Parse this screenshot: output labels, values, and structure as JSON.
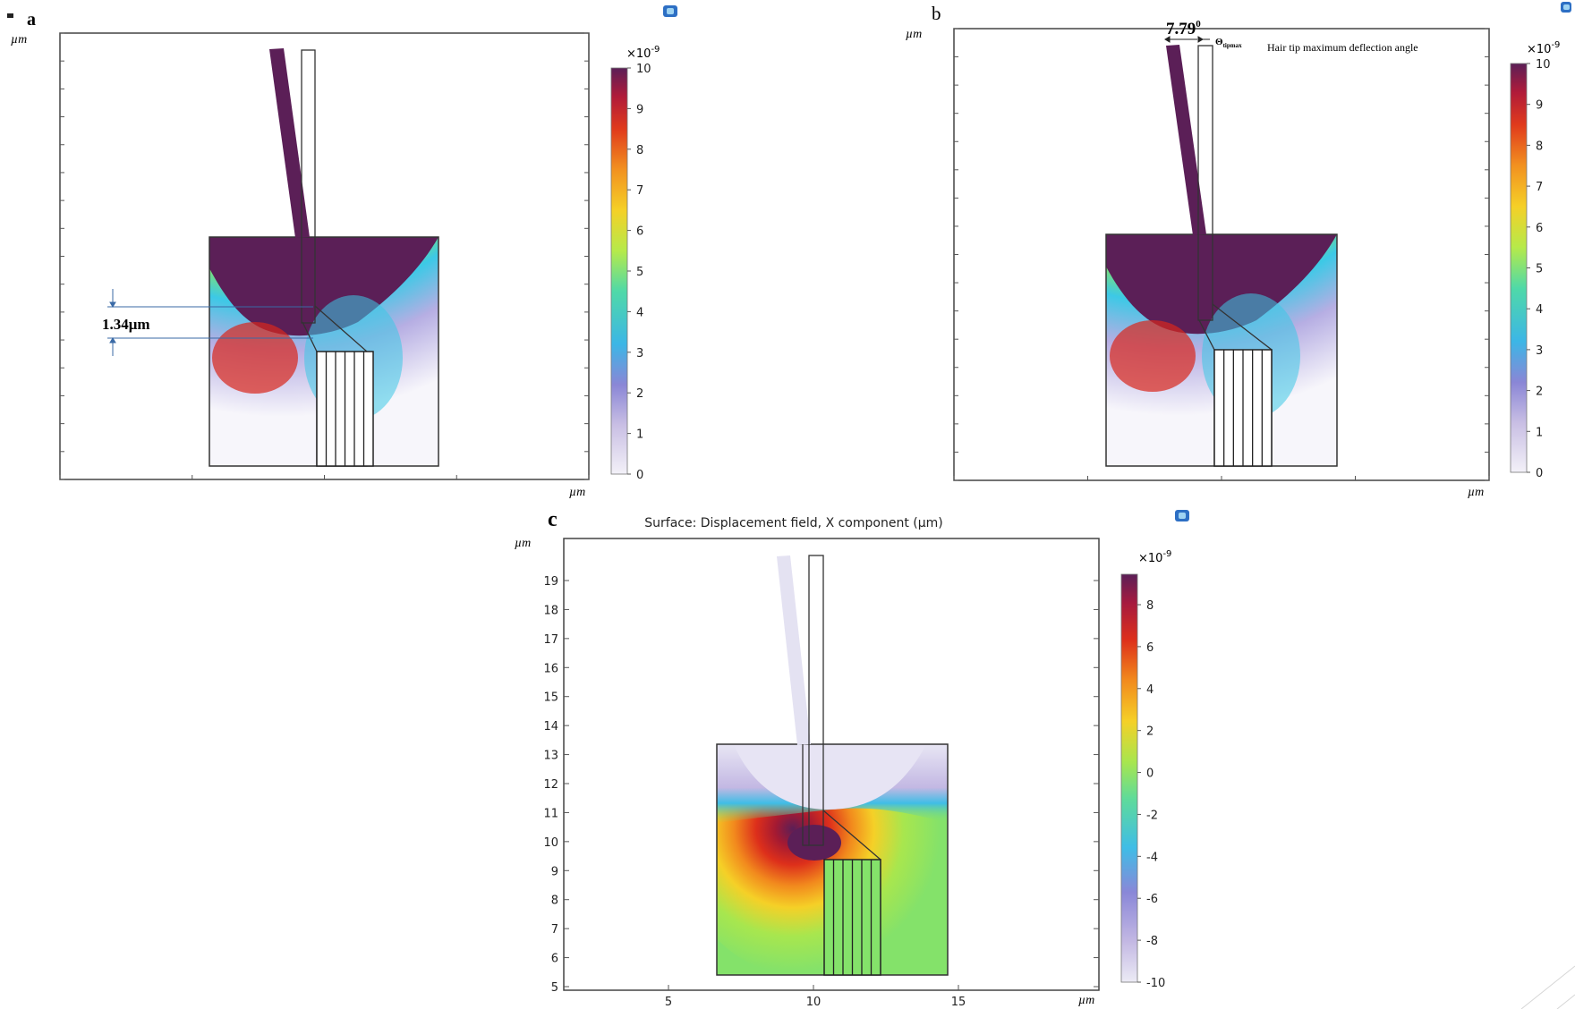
{
  "colors": {
    "purple": "#5b1f57",
    "red": "#d9261b",
    "orange": "#f07a1a",
    "yellow": "#f5d027",
    "green": "#84e26a",
    "cyan": "#3cc9e6",
    "lavender": "#c7bde6",
    "white": "#f7f6fb",
    "frame": "#333333"
  },
  "panels": [
    {
      "label": "a",
      "axis_unit_y": "µm",
      "axis_unit_x": "µm",
      "colorbar": {
        "multiplier": "×10",
        "exponent": "-9",
        "ticks": [
          "10",
          "9",
          "8",
          "7",
          "6",
          "5",
          "4",
          "3",
          "2",
          "1",
          "0"
        ],
        "palette": "sequential"
      },
      "annotation": "1.34μm",
      "icon": "comsol-logo-icon"
    },
    {
      "label": "b",
      "axis_unit_y": "µm",
      "axis_unit_x": "µm",
      "colorbar": {
        "multiplier": "×10",
        "exponent": "-9",
        "ticks": [
          "10",
          "9",
          "8",
          "7",
          "6",
          "5",
          "4",
          "3",
          "2",
          "1",
          "0"
        ],
        "palette": "sequential"
      },
      "angle_text": "7.79",
      "angle_degree": "0",
      "theta_symbol": "Θ",
      "theta_subscript": "tipmax",
      "annotation": "Hair tip maximum deflection angle",
      "icon": "comsol-logo-icon"
    },
    {
      "label": "c",
      "title": "Surface: Displacement field, X component (µm)",
      "axis_unit_y": "µm",
      "axis_unit_x": "µm",
      "y_ticks": [
        "19",
        "18",
        "17",
        "16",
        "15",
        "14",
        "13",
        "12",
        "11",
        "10",
        "9",
        "8",
        "7",
        "6",
        "5"
      ],
      "x_ticks": [
        "5",
        "10",
        "15"
      ],
      "colorbar": {
        "multiplier": "×10",
        "exponent": "-9",
        "ticks": [
          "8",
          "6",
          "4",
          "2",
          "0",
          "-2",
          "-4",
          "-6",
          "-8",
          "-10"
        ],
        "palette": "diverging"
      },
      "icon": "comsol-logo-icon"
    }
  ]
}
